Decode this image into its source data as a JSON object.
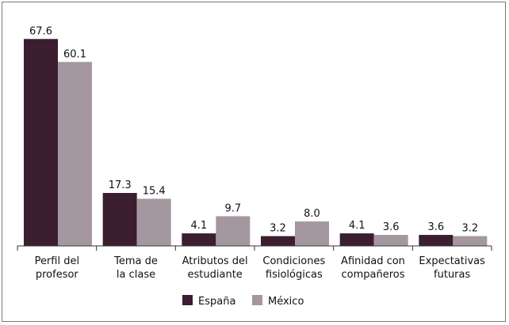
{
  "chart_data": {
    "type": "bar",
    "categories": [
      [
        "Perfil del",
        "profesor"
      ],
      [
        "Tema de",
        "la clase"
      ],
      [
        "Atributos del",
        "estudiante"
      ],
      [
        "Condiciones",
        "fisiológicas"
      ],
      [
        "Afinidad con",
        "compañeros"
      ],
      [
        "Expectativas",
        "futuras"
      ]
    ],
    "series": [
      {
        "name": "España",
        "color": "#3b1e2f",
        "values": [
          67.6,
          17.3,
          4.1,
          3.2,
          4.1,
          3.6
        ]
      },
      {
        "name": "México",
        "color": "#a5979f",
        "values": [
          60.1,
          15.4,
          9.7,
          8.0,
          3.6,
          3.2
        ]
      }
    ],
    "value_labels": [
      [
        "67.6",
        "17.3",
        "4.1",
        "3.2",
        "4.1",
        "3.6"
      ],
      [
        "60.1",
        "15.4",
        "9.7",
        "8.0",
        "3.6",
        "3.2"
      ]
    ],
    "ylim": [
      0,
      70
    ],
    "grid": false,
    "legend": "bottom"
  }
}
